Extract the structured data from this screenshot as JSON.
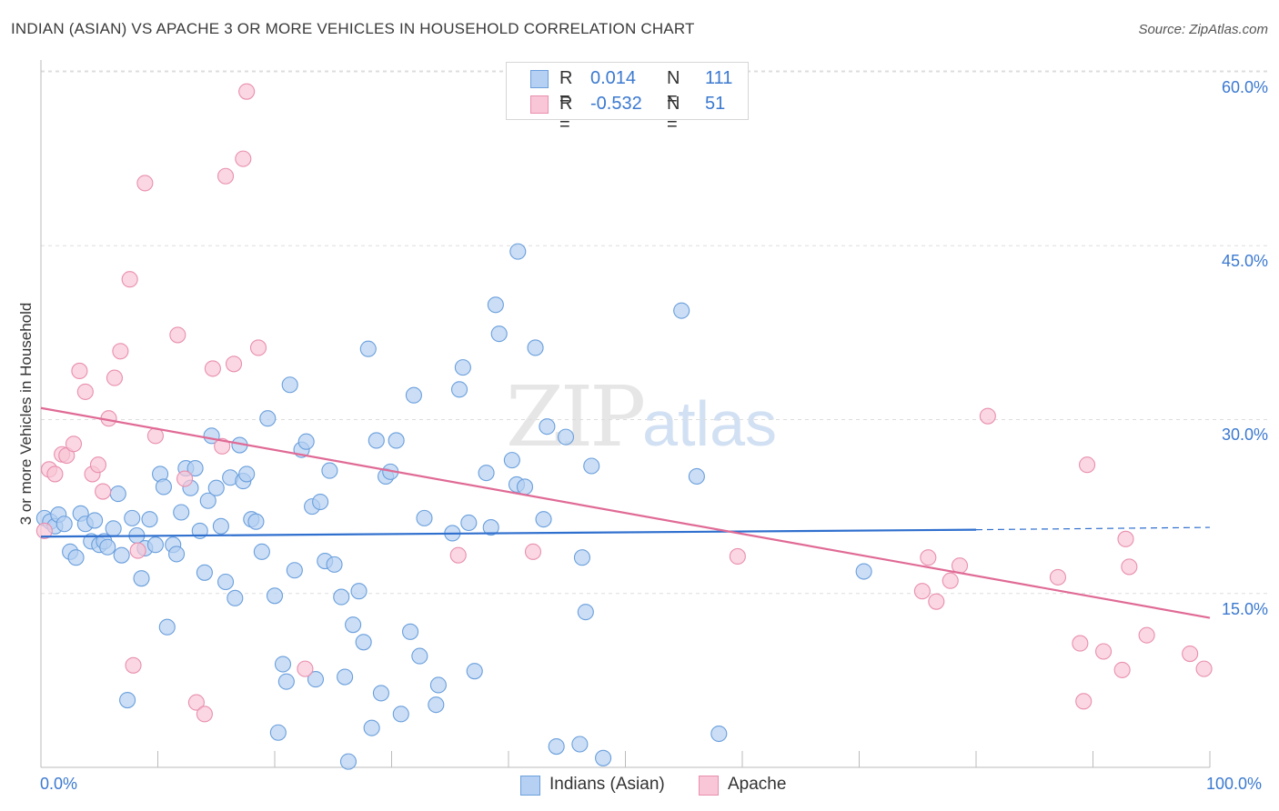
{
  "header": {
    "title": "INDIAN (ASIAN) VS APACHE 3 OR MORE VEHICLES IN HOUSEHOLD CORRELATION CHART",
    "source": "Source: ZipAtlas.com"
  },
  "watermark": {
    "zip": "ZIP",
    "atlas": "atlas"
  },
  "legend": {
    "rows": [
      {
        "r_label": "R =",
        "r_value": "0.014",
        "n_label": "N =",
        "n_value": "111"
      },
      {
        "r_label": "R =",
        "r_value": "-0.532",
        "n_label": "N =",
        "n_value": "51"
      }
    ]
  },
  "bottom_legend": {
    "series1": "Indians (Asian)",
    "series2": "Apache"
  },
  "colors": {
    "blue_fill": "#b5d0f2",
    "blue_stroke": "#6a9fdc",
    "blue_line": "#2f6fce",
    "pink_fill": "#f8c6d6",
    "pink_stroke": "#e98fae",
    "pink_line": "#e06a95",
    "grid": "#dddddd",
    "tick_text": "#3b79d0"
  },
  "chart_data": {
    "type": "scatter",
    "title": "INDIAN (ASIAN) VS APACHE 3 OR MORE VEHICLES IN HOUSEHOLD CORRELATION CHART",
    "ylabel": "3 or more Vehicles in Household",
    "xlabel": "",
    "x_tick_labels": [
      "0.0%",
      "100.0%"
    ],
    "y_tick_labels": [
      "15.0%",
      "30.0%",
      "45.0%",
      "60.0%"
    ],
    "xlim": [
      0,
      100
    ],
    "ylim": [
      0,
      62
    ],
    "y_ticks": [
      15,
      30,
      45,
      60
    ],
    "grid": "horizontal dashed",
    "legend_placement": "top-center",
    "series": [
      {
        "name": "Indians (Asian)",
        "color": "#6a9fdc",
        "trend": {
          "x": [
            0,
            80
          ],
          "y": [
            19.9,
            20.5
          ],
          "extend_to_x": 100,
          "extend_y": 20.7
        },
        "points": [
          [
            0.3,
            21.5
          ],
          [
            0.8,
            21.2
          ],
          [
            1.2,
            20.8
          ],
          [
            1.5,
            21.8
          ],
          [
            2.0,
            21.0
          ],
          [
            2.5,
            18.6
          ],
          [
            3.0,
            18.1
          ],
          [
            3.4,
            21.9
          ],
          [
            3.8,
            21.0
          ],
          [
            4.3,
            19.5
          ],
          [
            4.6,
            21.3
          ],
          [
            5.0,
            19.2
          ],
          [
            5.4,
            19.5
          ],
          [
            5.7,
            19.0
          ],
          [
            6.2,
            20.6
          ],
          [
            6.6,
            23.6
          ],
          [
            6.9,
            18.3
          ],
          [
            7.4,
            5.8
          ],
          [
            7.8,
            21.5
          ],
          [
            8.2,
            20.0
          ],
          [
            8.6,
            16.3
          ],
          [
            8.9,
            18.9
          ],
          [
            9.3,
            21.4
          ],
          [
            9.8,
            19.2
          ],
          [
            10.2,
            25.3
          ],
          [
            10.5,
            24.2
          ],
          [
            10.8,
            12.1
          ],
          [
            11.3,
            19.2
          ],
          [
            11.6,
            18.4
          ],
          [
            12.0,
            22.0
          ],
          [
            12.4,
            25.8
          ],
          [
            12.8,
            24.1
          ],
          [
            13.2,
            25.8
          ],
          [
            13.6,
            20.4
          ],
          [
            14.0,
            16.8
          ],
          [
            14.3,
            23.0
          ],
          [
            14.6,
            28.6
          ],
          [
            15.0,
            24.1
          ],
          [
            15.4,
            20.8
          ],
          [
            15.8,
            16.0
          ],
          [
            16.2,
            25.0
          ],
          [
            16.6,
            14.6
          ],
          [
            17.0,
            27.8
          ],
          [
            17.3,
            24.7
          ],
          [
            17.6,
            25.3
          ],
          [
            18.0,
            21.4
          ],
          [
            18.4,
            21.2
          ],
          [
            18.9,
            18.6
          ],
          [
            19.4,
            30.1
          ],
          [
            20.0,
            14.8
          ],
          [
            20.3,
            3.0
          ],
          [
            20.7,
            8.9
          ],
          [
            21.0,
            7.4
          ],
          [
            21.3,
            33.0
          ],
          [
            21.7,
            17.0
          ],
          [
            22.3,
            27.4
          ],
          [
            22.7,
            28.1
          ],
          [
            23.2,
            22.5
          ],
          [
            23.5,
            7.6
          ],
          [
            23.9,
            22.9
          ],
          [
            24.3,
            17.8
          ],
          [
            24.7,
            25.6
          ],
          [
            25.1,
            17.5
          ],
          [
            25.7,
            14.7
          ],
          [
            26.0,
            7.8
          ],
          [
            26.3,
            0.5
          ],
          [
            26.7,
            12.3
          ],
          [
            27.2,
            15.2
          ],
          [
            27.6,
            10.8
          ],
          [
            28.0,
            36.1
          ],
          [
            28.3,
            3.4
          ],
          [
            28.7,
            28.2
          ],
          [
            29.1,
            6.4
          ],
          [
            29.5,
            25.1
          ],
          [
            29.9,
            25.5
          ],
          [
            30.4,
            28.2
          ],
          [
            30.8,
            4.6
          ],
          [
            31.6,
            11.7
          ],
          [
            31.9,
            32.1
          ],
          [
            32.4,
            9.6
          ],
          [
            32.8,
            21.5
          ],
          [
            33.8,
            5.4
          ],
          [
            34.0,
            7.1
          ],
          [
            35.2,
            20.2
          ],
          [
            35.8,
            32.6
          ],
          [
            36.1,
            34.5
          ],
          [
            36.6,
            21.1
          ],
          [
            37.1,
            8.3
          ],
          [
            38.1,
            25.4
          ],
          [
            38.5,
            20.7
          ],
          [
            38.9,
            39.9
          ],
          [
            39.2,
            37.4
          ],
          [
            40.3,
            26.5
          ],
          [
            40.7,
            24.4
          ],
          [
            41.4,
            24.2
          ],
          [
            42.3,
            36.2
          ],
          [
            43.0,
            21.4
          ],
          [
            43.3,
            29.4
          ],
          [
            44.1,
            1.8
          ],
          [
            44.9,
            28.5
          ],
          [
            46.1,
            2.0
          ],
          [
            46.3,
            18.1
          ],
          [
            46.6,
            13.4
          ],
          [
            47.1,
            26.0
          ],
          [
            48.1,
            0.8
          ],
          [
            40.8,
            44.5
          ],
          [
            54.8,
            39.4
          ],
          [
            56.1,
            25.1
          ],
          [
            58.0,
            2.9
          ],
          [
            70.4,
            16.9
          ]
        ]
      },
      {
        "name": "Apache",
        "color": "#e98fae",
        "trend": {
          "x": [
            0,
            100
          ],
          "y": [
            31.0,
            12.9
          ]
        },
        "points": [
          [
            0.3,
            20.4
          ],
          [
            0.7,
            25.7
          ],
          [
            1.2,
            25.3
          ],
          [
            1.8,
            27.0
          ],
          [
            2.2,
            26.9
          ],
          [
            2.8,
            27.9
          ],
          [
            3.3,
            34.2
          ],
          [
            3.8,
            32.4
          ],
          [
            4.4,
            25.3
          ],
          [
            4.9,
            26.1
          ],
          [
            5.3,
            23.8
          ],
          [
            5.8,
            30.1
          ],
          [
            6.3,
            33.6
          ],
          [
            6.8,
            35.9
          ],
          [
            7.6,
            42.1
          ],
          [
            7.9,
            8.8
          ],
          [
            8.3,
            18.7
          ],
          [
            8.9,
            50.4
          ],
          [
            9.8,
            28.6
          ],
          [
            11.7,
            37.3
          ],
          [
            12.3,
            24.9
          ],
          [
            13.3,
            5.6
          ],
          [
            14.0,
            4.6
          ],
          [
            14.7,
            34.4
          ],
          [
            15.5,
            27.7
          ],
          [
            15.8,
            51.0
          ],
          [
            16.5,
            34.8
          ],
          [
            17.3,
            52.5
          ],
          [
            17.6,
            58.3
          ],
          [
            18.6,
            36.2
          ],
          [
            22.6,
            8.5
          ],
          [
            35.7,
            18.3
          ],
          [
            42.1,
            18.6
          ],
          [
            59.6,
            18.2
          ],
          [
            75.4,
            15.2
          ],
          [
            75.9,
            18.1
          ],
          [
            76.6,
            14.3
          ],
          [
            77.8,
            16.1
          ],
          [
            78.6,
            17.4
          ],
          [
            81.0,
            30.3
          ],
          [
            87.0,
            16.4
          ],
          [
            88.9,
            10.7
          ],
          [
            89.2,
            5.7
          ],
          [
            89.5,
            26.1
          ],
          [
            90.9,
            10.0
          ],
          [
            92.5,
            8.4
          ],
          [
            92.8,
            19.7
          ],
          [
            93.1,
            17.3
          ],
          [
            94.6,
            11.4
          ],
          [
            98.3,
            9.8
          ],
          [
            99.5,
            8.5
          ]
        ]
      }
    ]
  }
}
